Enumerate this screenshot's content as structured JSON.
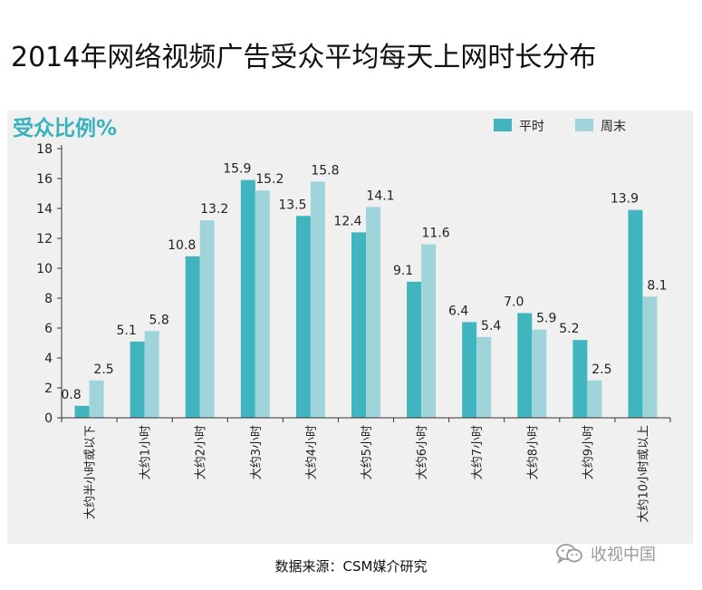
{
  "page": {
    "title": "2014年网络视频广告受众平均每天上网时长分布",
    "source": "数据来源：CSM媒介研究",
    "watermark": "收视中国",
    "watermark_icon": "wechat-icon"
  },
  "colors": {
    "weekday": "#40b5bf",
    "weekend": "#9fd5da",
    "axis_title": "#39b2bc",
    "panel": "#f0f0f0"
  },
  "chart_data": {
    "type": "bar",
    "title": "2014年网络视频广告受众平均每天上网时长分布",
    "ylabel": "受众比例%",
    "xlabel": "",
    "ylim": [
      0,
      18
    ],
    "yticks": [
      0,
      2,
      4,
      6,
      8,
      10,
      12,
      14,
      16,
      18
    ],
    "grid": false,
    "legend_position": "top-right",
    "categories": [
      "大约半小时或以下",
      "大约1小时",
      "大约2小时",
      "大约3小时",
      "大约4小时",
      "大约5小时",
      "大约6小时",
      "大约7小时",
      "大约8小时",
      "大约9小时",
      "大约10小时或以上"
    ],
    "series": [
      {
        "name": "平时",
        "values": [
          0.8,
          5.1,
          10.8,
          15.9,
          13.5,
          12.4,
          9.1,
          6.4,
          7.0,
          5.2,
          13.9
        ],
        "labels": [
          "0.8",
          "5.1",
          "10.8",
          "15.9",
          "13.5",
          "12.4",
          "9.1",
          "6.4",
          "7.0",
          "5.2",
          "13.9"
        ]
      },
      {
        "name": "周末",
        "values": [
          2.5,
          5.8,
          13.2,
          15.2,
          15.8,
          14.1,
          11.6,
          5.4,
          5.9,
          2.5,
          8.1
        ],
        "labels": [
          "2.5",
          "5.8",
          "13.2",
          "15.2",
          "15.8",
          "14.1",
          "11.6",
          "5.4",
          "5.9",
          "2.5",
          "8.1"
        ]
      }
    ]
  }
}
